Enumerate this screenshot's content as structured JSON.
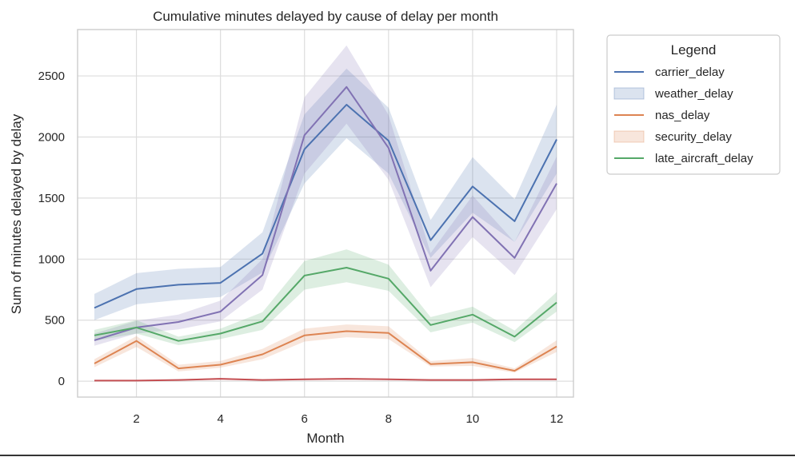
{
  "chart_data": {
    "type": "line",
    "title": "Cumulative minutes delayed by cause of delay per month",
    "xlabel": "Month",
    "ylabel": "Sum of minutes delayed by delay",
    "xlim": [
      0.6,
      12.4
    ],
    "ylim": [
      -130,
      2880
    ],
    "xticks": [
      2,
      4,
      6,
      8,
      10,
      12
    ],
    "yticks": [
      0,
      500,
      1000,
      1500,
      2000,
      2500
    ],
    "grid": true,
    "legend": {
      "title": "Legend",
      "placement": "outside-right",
      "entries": [
        {
          "label": "carrier_delay",
          "style": "line",
          "color": "#4c72b0"
        },
        {
          "label": "weather_delay",
          "style": "band",
          "color": "#4c72b0"
        },
        {
          "label": "nas_delay",
          "style": "line",
          "color": "#dd8452"
        },
        {
          "label": "security_delay",
          "style": "band",
          "color": "#dd8452"
        },
        {
          "label": "late_aircraft_delay",
          "style": "line",
          "color": "#55a868"
        }
      ]
    },
    "x": [
      1,
      2,
      3,
      4,
      5,
      6,
      7,
      8,
      9,
      10,
      11,
      12
    ],
    "series": [
      {
        "color": "#4c72b0",
        "values": [
          600,
          755,
          790,
          805,
          1045,
          1900,
          2265,
          1970,
          1155,
          1595,
          1310,
          1980
        ],
        "lower": [
          500,
          630,
          665,
          690,
          890,
          1620,
          1990,
          1700,
          1010,
          1380,
          1140,
          1700
        ],
        "upper": [
          715,
          885,
          920,
          935,
          1220,
          2185,
          2560,
          2240,
          1320,
          1835,
          1490,
          2265
        ]
      },
      {
        "color": "#8172b3",
        "values": [
          335,
          440,
          485,
          570,
          870,
          2015,
          2410,
          1910,
          905,
          1345,
          1010,
          1620
        ],
        "lower": [
          290,
          390,
          425,
          490,
          750,
          1700,
          2110,
          1650,
          770,
          1180,
          870,
          1410
        ],
        "upper": [
          390,
          495,
          545,
          660,
          1000,
          2325,
          2750,
          2180,
          1050,
          1520,
          1140,
          1840
        ]
      },
      {
        "color": "#dd8452",
        "values": [
          145,
          330,
          105,
          135,
          220,
          375,
          410,
          395,
          140,
          155,
          85,
          285
        ],
        "lower": [
          115,
          280,
          80,
          110,
          180,
          325,
          360,
          345,
          120,
          125,
          70,
          240
        ],
        "upper": [
          180,
          370,
          135,
          165,
          265,
          430,
          465,
          450,
          165,
          190,
          105,
          335
        ]
      },
      {
        "color": "#c44e52",
        "values": [
          5,
          5,
          10,
          20,
          10,
          15,
          20,
          15,
          10,
          10,
          15,
          15
        ],
        "lower": [
          2,
          2,
          6,
          14,
          6,
          10,
          14,
          10,
          6,
          6,
          10,
          10
        ],
        "upper": [
          9,
          9,
          15,
          27,
          15,
          21,
          27,
          21,
          15,
          15,
          21,
          21
        ]
      },
      {
        "color": "#55a868",
        "values": [
          375,
          440,
          330,
          390,
          490,
          865,
          930,
          840,
          460,
          545,
          365,
          645
        ],
        "lower": [
          330,
          390,
          295,
          345,
          420,
          750,
          810,
          740,
          400,
          480,
          320,
          570
        ],
        "upper": [
          420,
          500,
          365,
          430,
          565,
          985,
          1080,
          955,
          525,
          610,
          415,
          730
        ]
      }
    ]
  }
}
